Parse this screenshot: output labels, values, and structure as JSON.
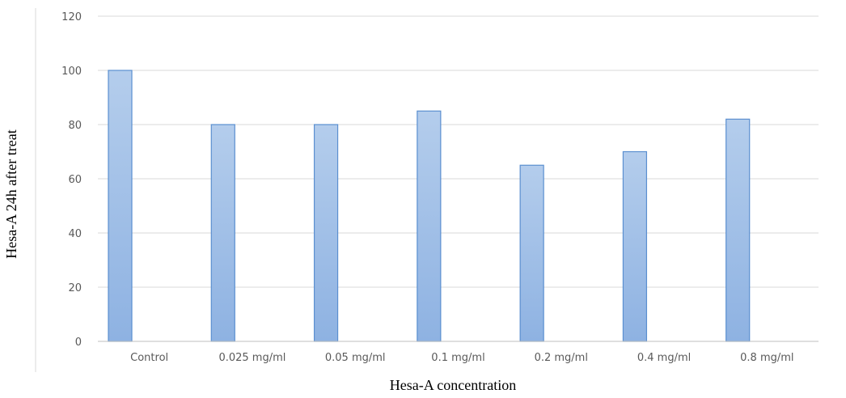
{
  "chart_data": {
    "type": "bar",
    "title": "",
    "xlabel": "Hesa-A concentration",
    "ylabel": "Hesa-A 24h after treat",
    "categories": [
      "Control",
      "0.025 mg/ml",
      "0.05 mg/ml",
      "0.1 mg/ml",
      "0.2 mg/ml",
      "0.4 mg/ml",
      "0.8 mg/ml"
    ],
    "series": [
      {
        "values": [
          100,
          80,
          80,
          85,
          65,
          70,
          82
        ]
      }
    ],
    "ylim": [
      0,
      120
    ],
    "yticks": [
      0,
      20,
      40,
      60,
      80,
      100,
      120
    ],
    "grid": true,
    "legend": "none",
    "colors": {
      "bar_fill_top": "#b4cdec",
      "bar_fill_bottom": "#8eb2e2",
      "bar_stroke": "#5b8fd0",
      "gridline": "#d9d9d9",
      "axis": "#bfbfbf",
      "tick_text": "#595959"
    }
  }
}
